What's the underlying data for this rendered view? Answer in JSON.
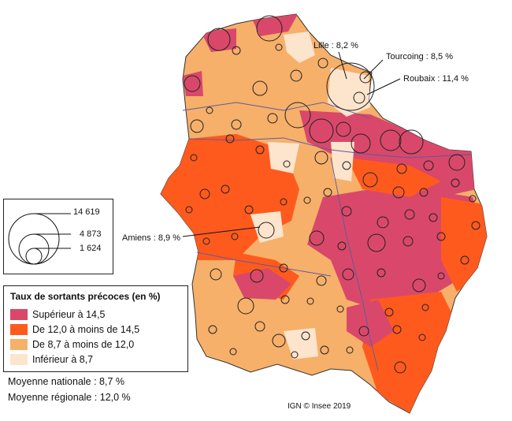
{
  "map": {
    "callouts": {
      "lille": "Lille : 8,2 %",
      "tourcoing": "Tourcoing : 8,5 %",
      "roubaix": "Roubaix : 11,4 %",
      "amiens": "Amiens : 8,9 %"
    },
    "region_color_by_zone": {
      "coast_north": "#f3a55b",
      "west_central": "#ff5a1e",
      "east_core": "#d9486a",
      "center_band": "#f6b06a",
      "south": "#f6b06a"
    }
  },
  "size_legend": {
    "values": [
      "14 619",
      "4 873",
      "1 624"
    ]
  },
  "legend": {
    "title": "Taux de sortants précoces (en %)",
    "items": [
      {
        "label": "Supérieur à 14,5",
        "color": "#d9486a"
      },
      {
        "label": "De 12,0 à moins de 14,5",
        "color": "#ff5a1e"
      },
      {
        "label": "De 8,7 à moins de 12,0",
        "color": "#f6b06a"
      },
      {
        "label": "Inférieur à 8,7",
        "color": "#fde4cc"
      }
    ]
  },
  "averages": {
    "national": "Moyenne nationale :   8,7 %",
    "regional": "Moyenne régionale : 12,0 %"
  },
  "credit": "IGN © Insee 2019"
}
